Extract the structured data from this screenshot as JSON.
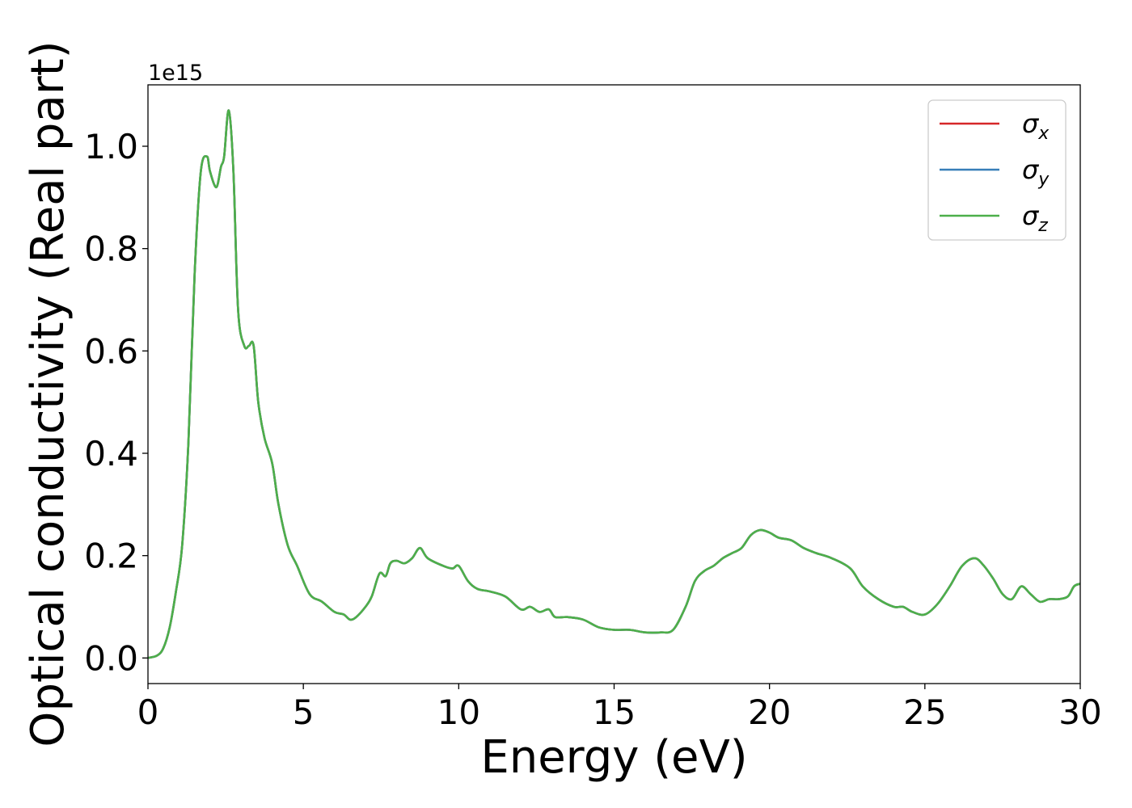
{
  "chart_data": {
    "type": "line",
    "xlabel": "Energy (eV)",
    "ylabel": "Optical conductivity (Real part)",
    "y_offset_label": "1e15",
    "y_multiplier": 1000000000000000.0,
    "xlim": [
      0,
      30
    ],
    "ylim": [
      -0.05,
      1.12
    ],
    "x_ticks": [
      0,
      5,
      10,
      15,
      20,
      25,
      30
    ],
    "x_tick_labels": [
      "0",
      "5",
      "10",
      "15",
      "20",
      "25",
      "30"
    ],
    "y_ticks": [
      0.0,
      0.2,
      0.4,
      0.6,
      0.8,
      1.0
    ],
    "y_tick_labels": [
      "0.0",
      "0.2",
      "0.4",
      "0.6",
      "0.8",
      "1.0"
    ],
    "grid": false,
    "legend_position": "top-right",
    "series": [
      {
        "name": "σx",
        "symbol": "σ",
        "subscript": "x",
        "color": "#d62728",
        "x": [
          0,
          0.3,
          0.5,
          0.7,
          0.9,
          1.1,
          1.3,
          1.5,
          1.7,
          1.9,
          2.0,
          2.2,
          2.35,
          2.45,
          2.6,
          2.75,
          2.9,
          3.1,
          3.25,
          3.4,
          3.55,
          3.75,
          4.0,
          4.2,
          4.5,
          4.8,
          5.2,
          5.6,
          6.0,
          6.3,
          6.5,
          6.7,
          7.0,
          7.2,
          7.45,
          7.65,
          7.8,
          8.0,
          8.25,
          8.5,
          8.75,
          9.0,
          9.5,
          9.8,
          10.0,
          10.3,
          10.6,
          11.0,
          11.5,
          12.0,
          12.3,
          12.6,
          12.9,
          13.1,
          13.5,
          14.0,
          14.5,
          15.0,
          15.5,
          16.0,
          16.5,
          16.9,
          17.3,
          17.6,
          17.9,
          18.2,
          18.5,
          18.8,
          19.1,
          19.4,
          19.7,
          20.0,
          20.3,
          20.7,
          21.1,
          21.5,
          22.0,
          22.6,
          23.0,
          23.5,
          24.0,
          24.3,
          24.6,
          25.0,
          25.4,
          25.8,
          26.2,
          26.6,
          26.9,
          27.2,
          27.5,
          27.8,
          28.1,
          28.4,
          28.7,
          29.0,
          29.3,
          29.6,
          29.8,
          30.0
        ],
        "y": [
          0.0,
          0.005,
          0.02,
          0.06,
          0.13,
          0.22,
          0.42,
          0.75,
          0.95,
          0.98,
          0.95,
          0.92,
          0.96,
          0.98,
          1.07,
          0.95,
          0.68,
          0.61,
          0.61,
          0.61,
          0.5,
          0.43,
          0.38,
          0.3,
          0.22,
          0.18,
          0.125,
          0.11,
          0.09,
          0.085,
          0.075,
          0.08,
          0.1,
          0.12,
          0.165,
          0.16,
          0.185,
          0.19,
          0.185,
          0.195,
          0.215,
          0.195,
          0.18,
          0.175,
          0.18,
          0.15,
          0.135,
          0.13,
          0.12,
          0.095,
          0.1,
          0.09,
          0.095,
          0.08,
          0.08,
          0.075,
          0.06,
          0.055,
          0.055,
          0.05,
          0.05,
          0.055,
          0.1,
          0.15,
          0.17,
          0.18,
          0.195,
          0.205,
          0.215,
          0.24,
          0.25,
          0.245,
          0.235,
          0.23,
          0.215,
          0.205,
          0.195,
          0.175,
          0.14,
          0.115,
          0.1,
          0.1,
          0.09,
          0.085,
          0.105,
          0.14,
          0.18,
          0.195,
          0.18,
          0.155,
          0.125,
          0.115,
          0.14,
          0.125,
          0.11,
          0.115,
          0.115,
          0.12,
          0.14,
          0.145
        ]
      },
      {
        "name": "σy",
        "symbol": "σ",
        "subscript": "y",
        "color": "#377eb8",
        "x": [
          0,
          0.3,
          0.5,
          0.7,
          0.9,
          1.1,
          1.3,
          1.5,
          1.7,
          1.9,
          2.0,
          2.2,
          2.35,
          2.45,
          2.6,
          2.75,
          2.9,
          3.1,
          3.25,
          3.4,
          3.55,
          3.75,
          4.0,
          4.2,
          4.5,
          4.8,
          5.2,
          5.6,
          6.0,
          6.3,
          6.5,
          6.7,
          7.0,
          7.2,
          7.45,
          7.65,
          7.8,
          8.0,
          8.25,
          8.5,
          8.75,
          9.0,
          9.5,
          9.8,
          10.0,
          10.3,
          10.6,
          11.0,
          11.5,
          12.0,
          12.3,
          12.6,
          12.9,
          13.1,
          13.5,
          14.0,
          14.5,
          15.0,
          15.5,
          16.0,
          16.5,
          16.9,
          17.3,
          17.6,
          17.9,
          18.2,
          18.5,
          18.8,
          19.1,
          19.4,
          19.7,
          20.0,
          20.3,
          20.7,
          21.1,
          21.5,
          22.0,
          22.6,
          23.0,
          23.5,
          24.0,
          24.3,
          24.6,
          25.0,
          25.4,
          25.8,
          26.2,
          26.6,
          26.9,
          27.2,
          27.5,
          27.8,
          28.1,
          28.4,
          28.7,
          29.0,
          29.3,
          29.6,
          29.8,
          30.0
        ],
        "y": [
          0.0,
          0.005,
          0.02,
          0.06,
          0.13,
          0.22,
          0.42,
          0.75,
          0.95,
          0.98,
          0.95,
          0.92,
          0.96,
          0.98,
          1.07,
          0.95,
          0.68,
          0.61,
          0.61,
          0.61,
          0.5,
          0.43,
          0.38,
          0.3,
          0.22,
          0.18,
          0.125,
          0.11,
          0.09,
          0.085,
          0.075,
          0.08,
          0.1,
          0.12,
          0.165,
          0.16,
          0.185,
          0.19,
          0.185,
          0.195,
          0.215,
          0.195,
          0.18,
          0.175,
          0.18,
          0.15,
          0.135,
          0.13,
          0.12,
          0.095,
          0.1,
          0.09,
          0.095,
          0.08,
          0.08,
          0.075,
          0.06,
          0.055,
          0.055,
          0.05,
          0.05,
          0.055,
          0.1,
          0.15,
          0.17,
          0.18,
          0.195,
          0.205,
          0.215,
          0.24,
          0.25,
          0.245,
          0.235,
          0.23,
          0.215,
          0.205,
          0.195,
          0.175,
          0.14,
          0.115,
          0.1,
          0.1,
          0.09,
          0.085,
          0.105,
          0.14,
          0.18,
          0.195,
          0.18,
          0.155,
          0.125,
          0.115,
          0.14,
          0.125,
          0.11,
          0.115,
          0.115,
          0.12,
          0.14,
          0.145
        ]
      },
      {
        "name": "σz",
        "symbol": "σ",
        "subscript": "z",
        "color": "#4daf4a",
        "x": [
          0,
          0.3,
          0.5,
          0.7,
          0.9,
          1.1,
          1.3,
          1.5,
          1.7,
          1.9,
          2.0,
          2.2,
          2.35,
          2.45,
          2.6,
          2.75,
          2.9,
          3.1,
          3.25,
          3.4,
          3.55,
          3.75,
          4.0,
          4.2,
          4.5,
          4.8,
          5.2,
          5.6,
          6.0,
          6.3,
          6.5,
          6.7,
          7.0,
          7.2,
          7.45,
          7.65,
          7.8,
          8.0,
          8.25,
          8.5,
          8.75,
          9.0,
          9.5,
          9.8,
          10.0,
          10.3,
          10.6,
          11.0,
          11.5,
          12.0,
          12.3,
          12.6,
          12.9,
          13.1,
          13.5,
          14.0,
          14.5,
          15.0,
          15.5,
          16.0,
          16.5,
          16.9,
          17.3,
          17.6,
          17.9,
          18.2,
          18.5,
          18.8,
          19.1,
          19.4,
          19.7,
          20.0,
          20.3,
          20.7,
          21.1,
          21.5,
          22.0,
          22.6,
          23.0,
          23.5,
          24.0,
          24.3,
          24.6,
          25.0,
          25.4,
          25.8,
          26.2,
          26.6,
          26.9,
          27.2,
          27.5,
          27.8,
          28.1,
          28.4,
          28.7,
          29.0,
          29.3,
          29.6,
          29.8,
          30.0
        ],
        "y": [
          0.0,
          0.005,
          0.02,
          0.06,
          0.13,
          0.22,
          0.42,
          0.75,
          0.95,
          0.98,
          0.95,
          0.92,
          0.96,
          0.98,
          1.07,
          0.95,
          0.68,
          0.61,
          0.61,
          0.61,
          0.5,
          0.43,
          0.38,
          0.3,
          0.22,
          0.18,
          0.125,
          0.11,
          0.09,
          0.085,
          0.075,
          0.08,
          0.1,
          0.12,
          0.165,
          0.16,
          0.185,
          0.19,
          0.185,
          0.195,
          0.215,
          0.195,
          0.18,
          0.175,
          0.18,
          0.15,
          0.135,
          0.13,
          0.12,
          0.095,
          0.1,
          0.09,
          0.095,
          0.08,
          0.08,
          0.075,
          0.06,
          0.055,
          0.055,
          0.05,
          0.05,
          0.055,
          0.1,
          0.15,
          0.17,
          0.18,
          0.195,
          0.205,
          0.215,
          0.24,
          0.25,
          0.245,
          0.235,
          0.23,
          0.215,
          0.205,
          0.195,
          0.175,
          0.14,
          0.115,
          0.1,
          0.1,
          0.09,
          0.085,
          0.105,
          0.14,
          0.18,
          0.195,
          0.18,
          0.155,
          0.125,
          0.115,
          0.14,
          0.125,
          0.11,
          0.115,
          0.115,
          0.12,
          0.14,
          0.145
        ]
      }
    ]
  }
}
